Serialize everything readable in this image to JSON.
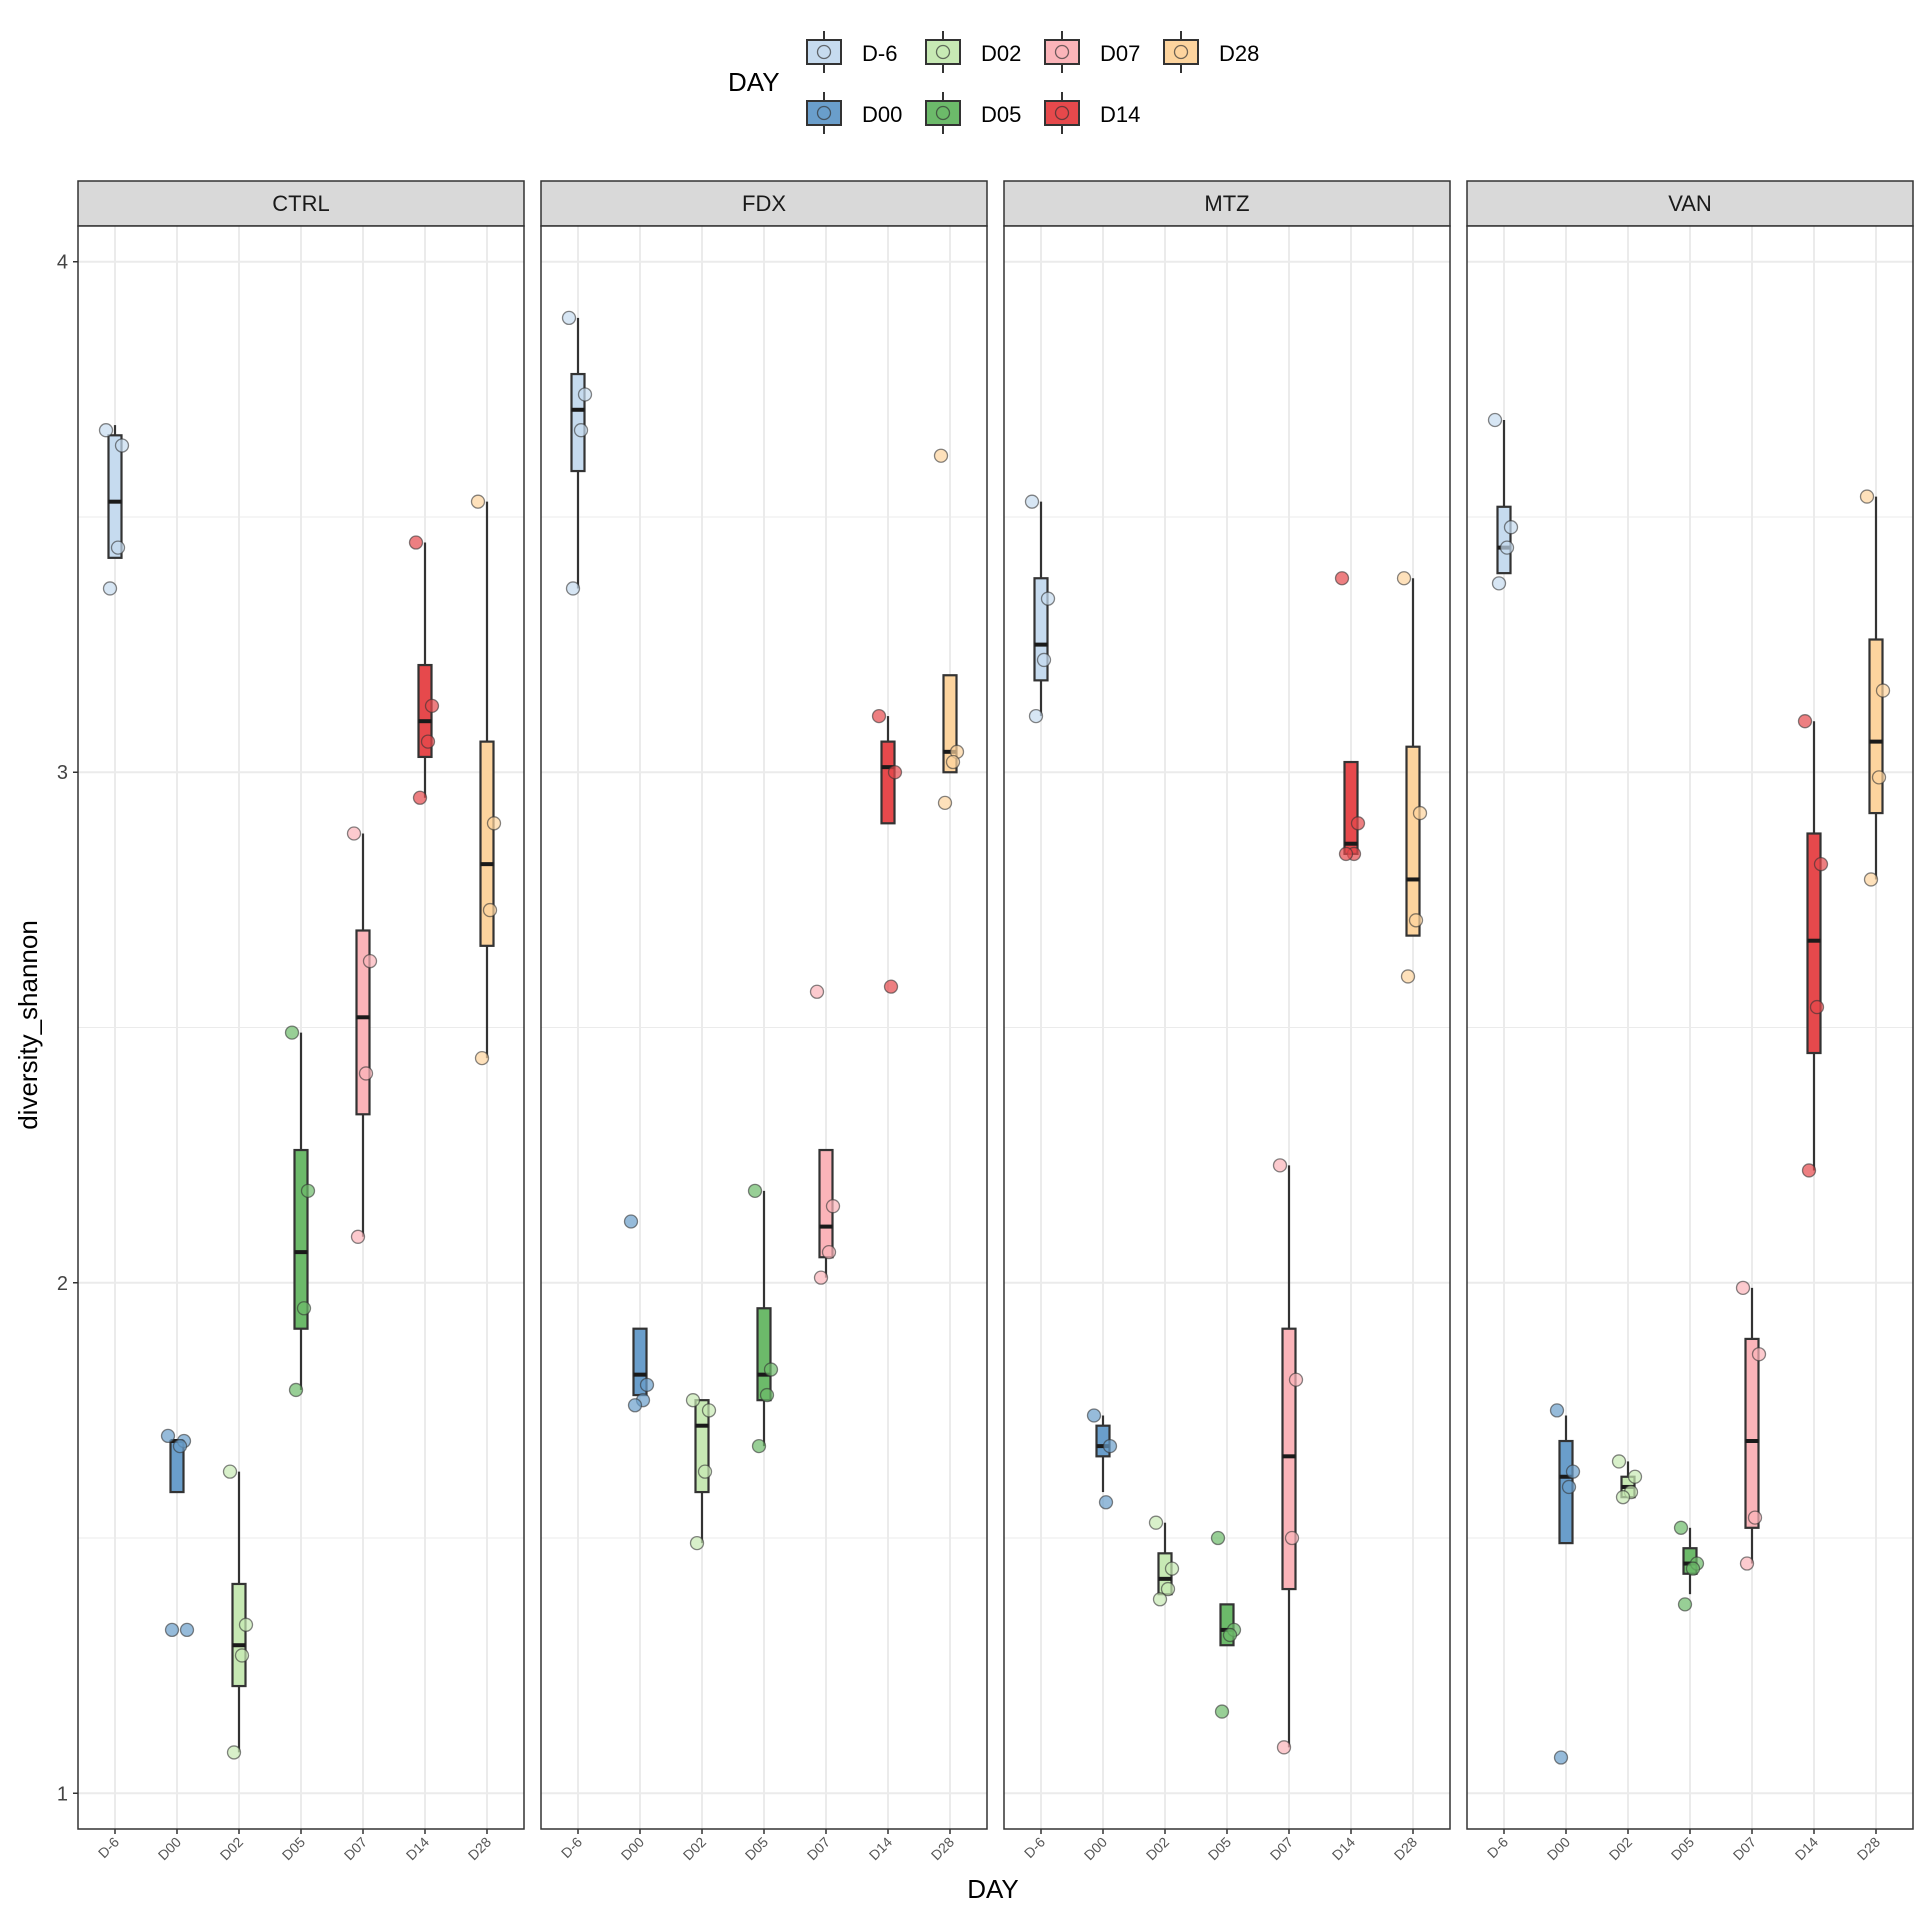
{
  "chart_data": {
    "type": "box",
    "xlabel": "DAY",
    "ylabel": "diversity_shannon",
    "ylim": [
      0.93,
      4.07
    ],
    "yticks": [
      1,
      2,
      3,
      4
    ],
    "categories": [
      "D-6",
      "D00",
      "D02",
      "D05",
      "D07",
      "D14",
      "D28"
    ],
    "legend": {
      "title": "DAY",
      "position": "top",
      "items": [
        {
          "label": "D-6",
          "color": "#c6dbef"
        },
        {
          "label": "D00",
          "color": "#6a9ecb"
        },
        {
          "label": "D02",
          "color": "#c7e9b4"
        },
        {
          "label": "D05",
          "color": "#6cba6a"
        },
        {
          "label": "D07",
          "color": "#fbb4b9"
        },
        {
          "label": "D14",
          "color": "#e6494c"
        },
        {
          "label": "D28",
          "color": "#fdd49e"
        }
      ]
    },
    "panels": [
      {
        "name": "CTRL",
        "boxes": [
          {
            "day": "D-6",
            "q1": 3.42,
            "median": 3.53,
            "q3": 3.66,
            "whisker_low": 3.42,
            "whisker_high": 3.68
          },
          {
            "day": "D00",
            "q1": 1.59,
            "median": 1.69,
            "q3": 1.69,
            "whisker_low": 1.59,
            "whisker_high": 1.69
          },
          {
            "day": "D02",
            "q1": 1.21,
            "median": 1.29,
            "q3": 1.41,
            "whisker_low": 1.08,
            "whisker_high": 1.63
          },
          {
            "day": "D05",
            "q1": 1.91,
            "median": 2.06,
            "q3": 2.26,
            "whisker_low": 1.79,
            "whisker_high": 2.49
          },
          {
            "day": "D07",
            "q1": 2.33,
            "median": 2.52,
            "q3": 2.69,
            "whisker_low": 2.09,
            "whisker_high": 2.88
          },
          {
            "day": "D14",
            "q1": 3.03,
            "median": 3.1,
            "q3": 3.21,
            "whisker_low": 2.95,
            "whisker_high": 3.45
          },
          {
            "day": "D28",
            "q1": 2.66,
            "median": 2.82,
            "q3": 3.06,
            "whisker_low": 2.44,
            "whisker_high": 3.53
          }
        ],
        "points": [
          {
            "day": "D-6",
            "values": [
              3.67,
              3.64,
              3.44,
              3.36
            ]
          },
          {
            "day": "D00",
            "values": [
              1.7,
              1.69,
              1.68,
              1.32,
              1.32
            ]
          },
          {
            "day": "D02",
            "values": [
              1.63,
              1.33,
              1.27,
              1.08
            ]
          },
          {
            "day": "D05",
            "values": [
              2.49,
              2.18,
              1.95,
              1.79
            ]
          },
          {
            "day": "D07",
            "values": [
              2.88,
              2.63,
              2.41,
              2.09
            ]
          },
          {
            "day": "D14",
            "values": [
              3.45,
              3.13,
              3.06,
              2.95
            ]
          },
          {
            "day": "D28",
            "values": [
              3.53,
              2.9,
              2.73,
              2.44
            ]
          }
        ]
      },
      {
        "name": "FDX",
        "boxes": [
          {
            "day": "D-6",
            "q1": 3.59,
            "median": 3.71,
            "q3": 3.78,
            "whisker_low": 3.36,
            "whisker_high": 3.89
          },
          {
            "day": "D00",
            "q1": 1.78,
            "median": 1.82,
            "q3": 1.91,
            "whisker_low": 1.78,
            "whisker_high": 1.91
          },
          {
            "day": "D02",
            "q1": 1.59,
            "median": 1.72,
            "q3": 1.77,
            "whisker_low": 1.49,
            "whisker_high": 1.77
          },
          {
            "day": "D05",
            "q1": 1.77,
            "median": 1.82,
            "q3": 1.95,
            "whisker_low": 1.68,
            "whisker_high": 2.18
          },
          {
            "day": "D07",
            "q1": 2.05,
            "median": 2.11,
            "q3": 2.26,
            "whisker_low": 2.01,
            "whisker_high": 2.26
          },
          {
            "day": "D14",
            "q1": 2.9,
            "median": 3.01,
            "q3": 3.06,
            "whisker_low": 2.9,
            "whisker_high": 3.11
          },
          {
            "day": "D28",
            "q1": 3.0,
            "median": 3.04,
            "q3": 3.19,
            "whisker_low": 3.0,
            "whisker_high": 3.19
          }
        ],
        "points": [
          {
            "day": "D-6",
            "values": [
              3.89,
              3.74,
              3.67,
              3.36
            ]
          },
          {
            "day": "D00",
            "values": [
              2.12,
              1.8,
              1.77,
              1.76
            ]
          },
          {
            "day": "D02",
            "values": [
              1.77,
              1.75,
              1.63,
              1.49
            ]
          },
          {
            "day": "D05",
            "values": [
              2.18,
              1.83,
              1.78,
              1.68
            ]
          },
          {
            "day": "D07",
            "values": [
              2.57,
              2.15,
              2.06,
              2.01
            ]
          },
          {
            "day": "D14",
            "values": [
              3.11,
              3.0,
              2.58
            ]
          },
          {
            "day": "D28",
            "values": [
              3.62,
              3.04,
              3.02,
              2.94
            ]
          }
        ]
      },
      {
        "name": "MTZ",
        "boxes": [
          {
            "day": "D-6",
            "q1": 3.18,
            "median": 3.25,
            "q3": 3.38,
            "whisker_low": 3.11,
            "whisker_high": 3.53
          },
          {
            "day": "D00",
            "q1": 1.66,
            "median": 1.68,
            "q3": 1.72,
            "whisker_low": 1.59,
            "whisker_high": 1.74
          },
          {
            "day": "D02",
            "q1": 1.39,
            "median": 1.42,
            "q3": 1.47,
            "whisker_low": 1.39,
            "whisker_high": 1.53
          },
          {
            "day": "D05",
            "q1": 1.29,
            "median": 1.32,
            "q3": 1.37,
            "whisker_low": 1.29,
            "whisker_high": 1.37
          },
          {
            "day": "D07",
            "q1": 1.4,
            "median": 1.66,
            "q3": 1.91,
            "whisker_low": 1.09,
            "whisker_high": 2.23
          },
          {
            "day": "D14",
            "q1": 2.84,
            "median": 2.86,
            "q3": 3.02,
            "whisker_low": 2.84,
            "whisker_high": 3.02
          },
          {
            "day": "D28",
            "q1": 2.68,
            "median": 2.79,
            "q3": 3.05,
            "whisker_low": 2.68,
            "whisker_high": 3.38
          }
        ],
        "points": [
          {
            "day": "D-6",
            "values": [
              3.53,
              3.34,
              3.22,
              3.11
            ]
          },
          {
            "day": "D00",
            "values": [
              1.74,
              1.68,
              1.57
            ]
          },
          {
            "day": "D02",
            "values": [
              1.53,
              1.44,
              1.4,
              1.38
            ]
          },
          {
            "day": "D05",
            "values": [
              1.5,
              1.32,
              1.31,
              1.16
            ]
          },
          {
            "day": "D07",
            "values": [
              2.23,
              1.81,
              1.5,
              1.09
            ]
          },
          {
            "day": "D14",
            "values": [
              3.38,
              2.9,
              2.84,
              2.84
            ]
          },
          {
            "day": "D28",
            "values": [
              3.38,
              2.92,
              2.71,
              2.6
            ]
          }
        ]
      },
      {
        "name": "VAN",
        "boxes": [
          {
            "day": "D-6",
            "q1": 3.39,
            "median": 3.44,
            "q3": 3.52,
            "whisker_low": 3.39,
            "whisker_high": 3.69
          },
          {
            "day": "D00",
            "q1": 1.49,
            "median": 1.62,
            "q3": 1.69,
            "whisker_low": 1.49,
            "whisker_high": 1.74
          },
          {
            "day": "D02",
            "q1": 1.58,
            "median": 1.6,
            "q3": 1.62,
            "whisker_low": 1.58,
            "whisker_high": 1.65
          },
          {
            "day": "D05",
            "q1": 1.43,
            "median": 1.45,
            "q3": 1.48,
            "whisker_low": 1.39,
            "whisker_high": 1.52
          },
          {
            "day": "D07",
            "q1": 1.52,
            "median": 1.69,
            "q3": 1.89,
            "whisker_low": 1.45,
            "whisker_high": 1.99
          },
          {
            "day": "D14",
            "q1": 2.45,
            "median": 2.67,
            "q3": 2.88,
            "whisker_low": 2.22,
            "whisker_high": 3.1
          },
          {
            "day": "D28",
            "q1": 2.92,
            "median": 3.06,
            "q3": 3.26,
            "whisker_low": 2.79,
            "whisker_high": 3.54
          }
        ],
        "points": [
          {
            "day": "D-6",
            "values": [
              3.69,
              3.48,
              3.44,
              3.37
            ]
          },
          {
            "day": "D00",
            "values": [
              1.75,
              1.63,
              1.6,
              1.07
            ]
          },
          {
            "day": "D02",
            "values": [
              1.65,
              1.62,
              1.59,
              1.58
            ]
          },
          {
            "day": "D05",
            "values": [
              1.52,
              1.45,
              1.44,
              1.37
            ]
          },
          {
            "day": "D07",
            "values": [
              1.99,
              1.86,
              1.54,
              1.45
            ]
          },
          {
            "day": "D14",
            "values": [
              3.1,
              2.82,
              2.54,
              2.22
            ]
          },
          {
            "day": "D28",
            "values": [
              3.54,
              3.16,
              2.99,
              2.79
            ]
          }
        ]
      }
    ]
  }
}
